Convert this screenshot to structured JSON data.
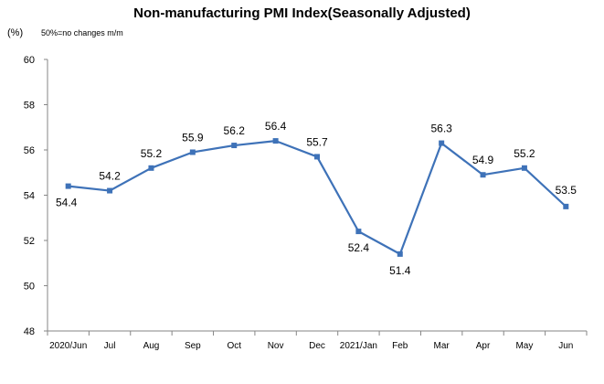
{
  "chart_data": {
    "type": "line",
    "title": "Non-manufacturing PMI Index(Seasonally Adjusted)",
    "unit": "(%)",
    "note": "50%=no changes  m/m",
    "categories": [
      "2020/Jun",
      "Jul",
      "Aug",
      "Sep",
      "Oct",
      "Nov",
      "Dec",
      "2021/Jan",
      "Feb",
      "Mar",
      "Apr",
      "May",
      "Jun"
    ],
    "series": [
      {
        "values": [
          54.4,
          54.2,
          55.2,
          55.9,
          56.2,
          56.4,
          55.7,
          52.4,
          51.4,
          56.3,
          54.9,
          55.2,
          53.5
        ]
      }
    ],
    "data_labels": [
      "54.4",
      "54.2",
      "55.2",
      "55.9",
      "56.2",
      "56.4",
      "55.7",
      "52.4",
      "51.4",
      "56.3",
      "54.9",
      "55.2",
      "53.5"
    ],
    "y_ticks": [
      48,
      50,
      52,
      54,
      56,
      58,
      60
    ],
    "ylim": [
      48,
      60
    ],
    "grid": false,
    "line_color": "#3e72b8"
  }
}
